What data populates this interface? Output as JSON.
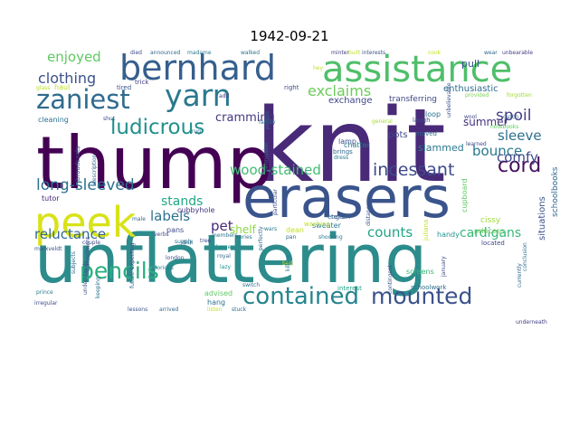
{
  "title": "1942-09-21",
  "palette": [
    "#440154",
    "#482677",
    "#3b528b",
    "#2c728e",
    "#21918c",
    "#28ae80",
    "#5ec962",
    "#addc30",
    "#fde725"
  ],
  "words": [
    {
      "text": "unflattering",
      "color": "#2c8c8c"
    },
    {
      "text": "knit",
      "color": "#482a78"
    },
    {
      "text": "thump",
      "color": "#440154"
    },
    {
      "text": "erasers",
      "color": "#3a548c"
    },
    {
      "text": "assistance",
      "color": "#4fbf6a"
    },
    {
      "text": "bernhard",
      "color": "#355f8d"
    },
    {
      "text": "peek",
      "color": "#d8e219"
    },
    {
      "text": "yarn",
      "color": "#2a788e"
    },
    {
      "text": "zaniest",
      "color": "#2f6b8e"
    },
    {
      "text": "contained",
      "color": "#26848e"
    },
    {
      "text": "mounted",
      "color": "#3b528b"
    },
    {
      "text": "pencils",
      "color": "#28ae80"
    },
    {
      "text": "ludicrous",
      "color": "#21908d"
    },
    {
      "text": "long-sleeved",
      "color": "#2c728e"
    },
    {
      "text": "incessant",
      "color": "#3e4a89"
    },
    {
      "text": "cord",
      "color": "#450f5f"
    },
    {
      "text": "wood-stained",
      "color": "#3fbc73"
    },
    {
      "text": "exclaims",
      "color": "#6ccd5a"
    },
    {
      "text": "enjoyed",
      "color": "#5ec962"
    },
    {
      "text": "clothing",
      "color": "#3b528b"
    },
    {
      "text": "spoil",
      "color": "#433e85"
    },
    {
      "text": "sleeve",
      "color": "#2d708e"
    },
    {
      "text": "bounce",
      "color": "#2a788e"
    },
    {
      "text": "comfy",
      "color": "#3e4989"
    },
    {
      "text": "cardigans",
      "color": "#35b779"
    },
    {
      "text": "counts",
      "color": "#20a486"
    },
    {
      "text": "reluctance",
      "color": "#31688e"
    },
    {
      "text": "labels",
      "color": "#2c728e"
    },
    {
      "text": "stands",
      "color": "#22a785"
    },
    {
      "text": "pet",
      "color": "#482878"
    },
    {
      "text": "shelf",
      "color": "#8fd744"
    },
    {
      "text": "cramming",
      "color": "#453781"
    },
    {
      "text": "summer",
      "color": "#46327e"
    },
    {
      "text": "pots",
      "color": "#3e4a89"
    },
    {
      "text": "slammed",
      "color": "#2a788e"
    },
    {
      "text": "pull",
      "color": "#3b528b"
    },
    {
      "text": "enthusiastic",
      "color": "#2e6e8e"
    },
    {
      "text": "transferring",
      "color": "#3f4788"
    },
    {
      "text": "exchange",
      "color": "#404688"
    },
    {
      "text": "cissy",
      "color": "#9fda3a"
    },
    {
      "text": "princess",
      "color": "#6ece58"
    },
    {
      "text": "cupboard",
      "color": "#5ec962"
    },
    {
      "text": "schoolbooks",
      "color": "#31688e"
    },
    {
      "text": "situations",
      "color": "#3b528b"
    },
    {
      "text": "sweater",
      "color": "#2a788e"
    },
    {
      "text": "dean",
      "color": "#c2df23"
    },
    {
      "text": "washing",
      "color": "#bddf26"
    },
    {
      "text": "screens",
      "color": "#35b779"
    },
    {
      "text": "cubbyhole",
      "color": "#453781"
    },
    {
      "text": "advised",
      "color": "#5ec962"
    },
    {
      "text": "hang",
      "color": "#2c728e"
    },
    {
      "text": "pans",
      "color": "#3e4989"
    },
    {
      "text": "lamp",
      "color": "#3b528b"
    },
    {
      "text": "chatter",
      "color": "#2a788e"
    },
    {
      "text": "loop",
      "color": "#2c728e"
    },
    {
      "text": "moved",
      "color": "#31688e"
    },
    {
      "text": "handy",
      "color": "#21918c"
    },
    {
      "text": "located",
      "color": "#404688"
    },
    {
      "text": "schoolwork",
      "color": "#2d708e"
    },
    {
      "text": "interest",
      "color": "#20a486"
    },
    {
      "text": "tutor",
      "color": "#482878"
    },
    {
      "text": "broadcasts",
      "color": "#3e4a89"
    },
    {
      "text": "cleaning",
      "color": "#2c728e"
    },
    {
      "text": "haul",
      "color": "#bddf26"
    },
    {
      "text": "glass",
      "color": "#b8de29"
    },
    {
      "text": "tired",
      "color": "#3b528b"
    },
    {
      "text": "trick",
      "color": "#433e85"
    },
    {
      "text": "died",
      "color": "#3e4989"
    },
    {
      "text": "announced",
      "color": "#31688e"
    },
    {
      "text": "madame",
      "color": "#2a788e"
    },
    {
      "text": "walked",
      "color": "#2c728e"
    },
    {
      "text": "minter",
      "color": "#433e85"
    },
    {
      "text": "built",
      "color": "#bddf26"
    },
    {
      "text": "interests",
      "color": "#3b528b"
    },
    {
      "text": "cook",
      "color": "#c8e020"
    },
    {
      "text": "wear",
      "color": "#31688e"
    },
    {
      "text": "unbearable",
      "color": "#433e85"
    },
    {
      "text": "right",
      "color": "#3e4a89"
    },
    {
      "text": "provided",
      "color": "#7ad151"
    },
    {
      "text": "forgotten",
      "color": "#a0da39"
    },
    {
      "text": "wool",
      "color": "#3e4989"
    },
    {
      "text": "dutch",
      "color": "#31688e"
    },
    {
      "text": "notebooks",
      "color": "#5ec962"
    },
    {
      "text": "learned",
      "color": "#3e4989"
    },
    {
      "text": "general",
      "color": "#a5db36"
    },
    {
      "text": "laugh",
      "color": "#3b528b"
    },
    {
      "text": "dress",
      "color": "#2a788e"
    },
    {
      "text": "brings",
      "color": "#31688e"
    },
    {
      "text": "tells",
      "color": "#433e85"
    },
    {
      "text": "english",
      "color": "#31688e"
    },
    {
      "text": "family",
      "color": "#2c728e"
    },
    {
      "text": "leaves",
      "color": "#21918c"
    },
    {
      "text": "supply",
      "color": "#2c728e"
    },
    {
      "text": "couple",
      "color": "#3e4a89"
    },
    {
      "text": "marxveldt",
      "color": "#3b528b"
    },
    {
      "text": "male",
      "color": "#31688e"
    },
    {
      "text": "verbs",
      "color": "#404688"
    },
    {
      "text": "london",
      "color": "#3b528b"
    },
    {
      "text": "glorious",
      "color": "#2a788e"
    },
    {
      "text": "royal",
      "color": "#31688e"
    },
    {
      "text": "lazy",
      "color": "#21918c"
    },
    {
      "text": "dish",
      "color": "#2c728e"
    },
    {
      "text": "tree",
      "color": "#3e4a89"
    },
    {
      "text": "series",
      "color": "#2c728e"
    },
    {
      "text": "pan",
      "color": "#31688e"
    },
    {
      "text": "shocking",
      "color": "#2a788e"
    },
    {
      "text": "bed",
      "color": "#bddf26"
    },
    {
      "text": "switch",
      "color": "#2c728e"
    },
    {
      "text": "stuck",
      "color": "#31688e"
    },
    {
      "text": "listen",
      "color": "#c2df23"
    },
    {
      "text": "arrived",
      "color": "#31688e"
    },
    {
      "text": "lessons",
      "color": "#3b528b"
    },
    {
      "text": "prince",
      "color": "#2a788e"
    },
    {
      "text": "irregular",
      "color": "#3e4989"
    },
    {
      "text": "keeping",
      "color": "#2c728e"
    },
    {
      "text": "future",
      "color": "#31688e"
    },
    {
      "text": "understands",
      "color": "#3b528b"
    },
    {
      "text": "subjects",
      "color": "#31688e"
    },
    {
      "text": "expecting",
      "color": "#3e4a89"
    },
    {
      "text": "members",
      "color": "#2c728e"
    },
    {
      "text": "particular",
      "color": "#3b528b"
    },
    {
      "text": "perfectly",
      "color": "#31688e"
    },
    {
      "text": "killing",
      "color": "#2a788e"
    },
    {
      "text": "january",
      "color": "#3e4989"
    },
    {
      "text": "currently",
      "color": "#31688e"
    },
    {
      "text": "conclusion",
      "color": "#2c728e"
    },
    {
      "text": "contingent",
      "color": "#3b528b"
    },
    {
      "text": "underneath",
      "color": "#433e85"
    },
    {
      "text": "wars",
      "color": "#2a788e"
    },
    {
      "text": "unbelievable",
      "color": "#3b528b"
    },
    {
      "text": "rug",
      "color": "#2c728e"
    },
    {
      "text": "add",
      "color": "#433e85"
    },
    {
      "text": "shut",
      "color": "#3e4989"
    },
    {
      "text": "juliana",
      "color": "#bddf26"
    },
    {
      "text": "hey",
      "color": "#c2df23"
    },
    {
      "text": "people",
      "color": "#31688e"
    },
    {
      "text": "permission",
      "color": "#2c728e"
    },
    {
      "text": "distance",
      "color": "#3b528b"
    },
    {
      "text": "description",
      "color": "#31688e"
    },
    {
      "text": "commitment",
      "color": "#3e4a89"
    }
  ]
}
